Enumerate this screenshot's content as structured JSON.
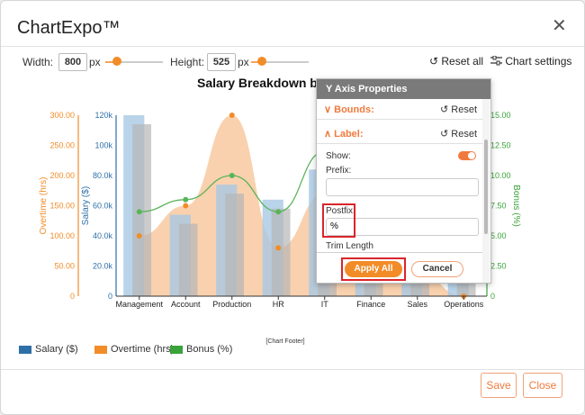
{
  "app": {
    "title": "ChartExpo™"
  },
  "toolbar": {
    "width_label": "Width:",
    "width_value": "800",
    "height_label": "Height:",
    "height_value": "525",
    "unit": "px",
    "reset_all": "↺ Reset all",
    "chart_settings": "Chart settings"
  },
  "chart_data": {
    "type": "bar",
    "title": "Salary Breakdown by D",
    "categories": [
      "Management",
      "Account",
      "Production",
      "HR",
      "IT",
      "Finance",
      "Sales",
      "Operations"
    ],
    "series": [
      {
        "name": "Salary ($)",
        "type": "bar",
        "values": [
          120,
          54,
          74,
          64,
          84,
          40,
          44,
          40
        ]
      },
      {
        "name": "Overtime (hrs)",
        "type": "area",
        "values": [
          100,
          150,
          300,
          80,
          170,
          60,
          40,
          0
        ]
      },
      {
        "name": "Bonus (%)",
        "type": "line",
        "values": [
          7.0,
          8.0,
          10.0,
          7.0,
          12.0,
          11.0,
          9.0,
          8.0
        ]
      }
    ],
    "axes": {
      "overtime": {
        "label": "Overtime (hrs)",
        "ticks": [
          "0",
          "50.00",
          "100.00",
          "150.00",
          "200.00",
          "250.00",
          "300.00"
        ],
        "range": [
          0,
          300
        ],
        "color": "#f28c28"
      },
      "salary": {
        "label": "Salary ($)",
        "ticks": [
          "0",
          "20.0k",
          "40.0k",
          "60.0k",
          "80.0k",
          "100k",
          "120k"
        ],
        "range": [
          0,
          120
        ],
        "color": "#2e6fa8"
      },
      "bonus": {
        "label": "Bonus (%)",
        "ticks": [
          "0",
          "2.50",
          "5.00",
          "7.50",
          "10.00",
          "12.50",
          "15.00"
        ],
        "range": [
          0,
          15
        ],
        "color": "#3aa23a"
      }
    },
    "footer": "[Chart Footer]",
    "colors": {
      "salary": "#a8c8e4",
      "salary_dark": "#b7b7b7",
      "overtime": "#f8c9a0",
      "bonus": "#5ab45a"
    }
  },
  "legend": {
    "salary": "Salary ($)",
    "overtime": "Overtime (hrs)",
    "bonus": "Bonus (%)"
  },
  "panel": {
    "title": "Y Axis Properties",
    "bounds": "Bounds:",
    "label": "Label:",
    "reset": "Reset",
    "show": "Show:",
    "prefix": "Prefix:",
    "prefix_value": "",
    "postfix": "Postfix:",
    "postfix_value": "%",
    "trim": "Trim Length",
    "apply": "Apply All",
    "cancel": "Cancel"
  },
  "footer": {
    "save": "Save",
    "close": "Close"
  }
}
